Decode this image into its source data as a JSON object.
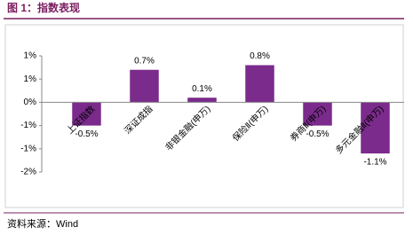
{
  "chart_data": {
    "type": "bar",
    "title": "图 1：指数表现",
    "source": "资料来源：Wind",
    "categories": [
      "上证指数",
      "深证成指",
      "非银金融(申万)",
      "保险Ⅱ(申万)",
      "券商Ⅱ(申万)",
      "多元金融Ⅱ(申万)"
    ],
    "values": [
      -0.5,
      0.7,
      0.1,
      0.8,
      -0.5,
      -1.1
    ],
    "value_labels": [
      "-0.5%",
      "0.7%",
      "0.1%",
      "0.8%",
      "-0.5%",
      "-1.1%"
    ],
    "color": "#7b2b8c",
    "ylim": [
      -1.5,
      1.0
    ],
    "yticks": [
      {
        "value": 1.0,
        "label": "1%"
      },
      {
        "value": 0.5,
        "label": "1%"
      },
      {
        "value": 0,
        "label": "0%"
      },
      {
        "value": -0.5,
        "label": "-1%"
      },
      {
        "value": -1.0,
        "label": "-1%"
      },
      {
        "value": -1.5,
        "label": "-2%"
      }
    ],
    "grid": false
  }
}
